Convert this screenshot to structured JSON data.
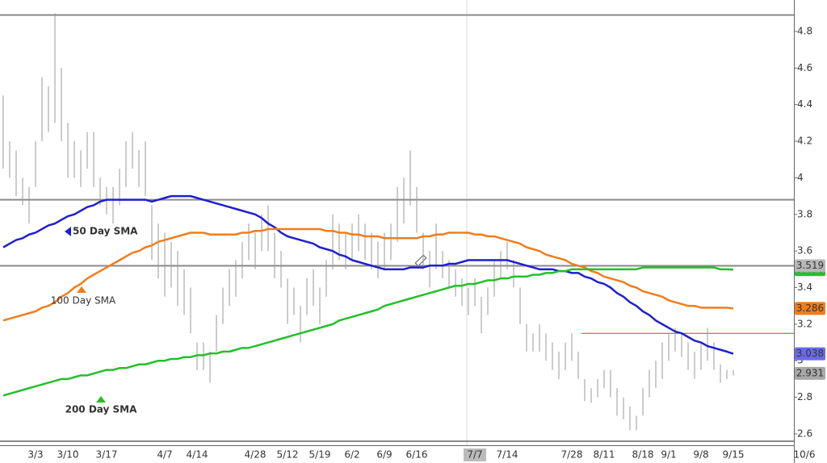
{
  "chart_data": {
    "type": "ohlc",
    "categories": [
      null,
      null,
      null,
      null,
      null,
      "3/3",
      null,
      null,
      null,
      null,
      "3/10",
      null,
      null,
      null,
      null,
      null,
      "3/17",
      null,
      null,
      null,
      null,
      null,
      null,
      null,
      null,
      "4/7",
      null,
      null,
      null,
      null,
      "4/14",
      null,
      null,
      null,
      null,
      null,
      null,
      null,
      null,
      "4/28",
      null,
      null,
      null,
      null,
      "5/12",
      null,
      null,
      null,
      null,
      "5/19",
      null,
      null,
      null,
      null,
      "6/2",
      null,
      null,
      null,
      null,
      "6/9",
      null,
      null,
      null,
      null,
      "6/16",
      null,
      null,
      null,
      null,
      null,
      null,
      null,
      null,
      "7/7",
      null,
      null,
      null,
      null,
      "7/14",
      null,
      null,
      null,
      null,
      null,
      null,
      null,
      null,
      null,
      "7/28",
      null,
      null,
      null,
      null,
      "8/11",
      null,
      null,
      null,
      null,
      null,
      "8/18",
      null,
      null,
      null,
      "9/1",
      null,
      null,
      null,
      null,
      "9/8",
      null,
      null,
      null,
      null,
      "9/15",
      null,
      null,
      null,
      null,
      null,
      null,
      null,
      null,
      null,
      null,
      "10/6"
    ],
    "high": [
      4.45,
      4.2,
      4.15,
      4.0,
      3.95,
      4.2,
      4.55,
      4.5,
      4.9,
      4.6,
      4.3,
      4.2,
      4.15,
      4.25,
      4.25,
      4.0,
      3.95,
      3.95,
      4.05,
      4.2,
      4.25,
      4.15,
      4.2,
      3.85,
      3.75,
      3.7,
      3.65,
      3.6,
      3.5,
      3.4,
      3.1,
      3.1,
      3.05,
      3.25,
      3.4,
      3.5,
      3.55,
      3.65,
      3.75,
      3.7,
      3.8,
      3.85,
      3.7,
      3.6,
      3.45,
      3.4,
      3.3,
      3.45,
      3.5,
      3.4,
      3.55,
      3.8,
      3.75,
      3.7,
      3.75,
      3.8,
      3.75,
      3.7,
      3.65,
      3.7,
      3.75,
      3.95,
      4.0,
      4.15,
      3.95,
      3.7,
      3.6,
      3.75,
      3.6,
      3.55,
      3.5,
      3.45,
      3.4,
      3.45,
      3.35,
      3.4,
      3.55,
      3.6,
      3.65,
      3.55,
      3.4,
      3.2,
      3.15,
      3.2,
      3.15,
      3.1,
      3.05,
      3.1,
      3.15,
      3.05,
      2.9,
      2.85,
      2.9,
      2.95,
      2.95,
      2.85,
      2.8,
      2.75,
      2.7,
      2.85,
      2.95,
      3.0,
      3.1,
      3.15,
      3.18,
      3.15,
      3.1,
      3.05,
      3.1,
      3.18,
      3.1,
      2.98,
      2.95,
      2.95,
      null,
      null,
      null,
      null,
      null,
      null,
      null,
      null,
      null,
      null,
      null
    ],
    "low": [
      4.05,
      4.0,
      3.9,
      3.85,
      3.75,
      3.95,
      4.2,
      4.25,
      4.3,
      4.2,
      4.0,
      4.0,
      3.95,
      4.05,
      3.95,
      3.85,
      3.8,
      3.75,
      3.85,
      3.95,
      4.05,
      3.95,
      3.9,
      3.55,
      3.45,
      3.35,
      3.4,
      3.3,
      3.25,
      3.15,
      2.95,
      2.95,
      2.88,
      3.05,
      3.2,
      3.3,
      3.35,
      3.45,
      3.55,
      3.5,
      3.6,
      3.6,
      3.45,
      3.4,
      3.2,
      3.25,
      3.1,
      3.25,
      3.3,
      3.2,
      3.35,
      3.5,
      3.55,
      3.5,
      3.55,
      3.6,
      3.55,
      3.5,
      3.45,
      3.5,
      3.55,
      3.65,
      3.75,
      3.85,
      3.7,
      3.5,
      3.4,
      3.5,
      3.45,
      3.4,
      3.35,
      3.3,
      3.25,
      3.3,
      3.15,
      3.25,
      3.35,
      3.45,
      3.5,
      3.4,
      3.2,
      3.05,
      3.05,
      3.05,
      3.0,
      2.95,
      2.9,
      2.95,
      3.0,
      2.9,
      2.78,
      2.77,
      2.8,
      2.85,
      2.8,
      2.7,
      2.68,
      2.62,
      2.62,
      2.7,
      2.8,
      2.85,
      2.9,
      3.0,
      3.05,
      3.02,
      2.95,
      2.9,
      2.95,
      3.0,
      2.95,
      2.88,
      2.9,
      2.92,
      null,
      null,
      null,
      null,
      null,
      null,
      null,
      null,
      null,
      null,
      null
    ],
    "bar_color": "#9a9a9a",
    "series": [
      {
        "name": "50 Day SMA",
        "color": "#1f1fcf",
        "values": [
          3.62,
          3.64,
          3.66,
          3.67,
          3.69,
          3.7,
          3.72,
          3.74,
          3.75,
          3.77,
          3.79,
          3.8,
          3.82,
          3.84,
          3.85,
          3.87,
          3.88,
          3.88,
          3.88,
          3.88,
          3.88,
          3.88,
          3.88,
          3.87,
          3.88,
          3.89,
          3.9,
          3.9,
          3.9,
          3.9,
          3.89,
          3.88,
          3.87,
          3.86,
          3.85,
          3.84,
          3.83,
          3.82,
          3.81,
          3.8,
          3.78,
          3.75,
          3.73,
          3.7,
          3.68,
          3.67,
          3.66,
          3.65,
          3.64,
          3.62,
          3.61,
          3.6,
          3.58,
          3.57,
          3.55,
          3.54,
          3.53,
          3.52,
          3.51,
          3.5,
          3.5,
          3.5,
          3.5,
          3.51,
          3.51,
          3.51,
          3.52,
          3.52,
          3.52,
          3.53,
          3.53,
          3.54,
          3.55,
          3.55,
          3.55,
          3.55,
          3.55,
          3.55,
          3.55,
          3.54,
          3.53,
          3.52,
          3.51,
          3.5,
          3.5,
          3.5,
          3.49,
          3.49,
          3.48,
          3.48,
          3.46,
          3.45,
          3.43,
          3.42,
          3.4,
          3.37,
          3.35,
          3.32,
          3.3,
          3.27,
          3.25,
          3.22,
          3.2,
          3.18,
          3.16,
          3.15,
          3.13,
          3.11,
          3.1,
          3.08,
          3.07,
          3.06,
          3.05,
          3.038,
          null,
          null,
          null,
          null,
          null,
          null,
          null,
          null,
          null,
          null,
          null
        ]
      },
      {
        "name": "100 Day SMA",
        "color": "#f07d1a",
        "values": [
          3.22,
          3.23,
          3.24,
          3.25,
          3.26,
          3.27,
          3.29,
          3.3,
          3.32,
          3.35,
          3.37,
          3.4,
          3.42,
          3.45,
          3.47,
          3.49,
          3.51,
          3.53,
          3.55,
          3.57,
          3.59,
          3.6,
          3.62,
          3.63,
          3.65,
          3.66,
          3.67,
          3.68,
          3.69,
          3.7,
          3.7,
          3.7,
          3.69,
          3.69,
          3.69,
          3.69,
          3.69,
          3.7,
          3.7,
          3.71,
          3.71,
          3.72,
          3.72,
          3.72,
          3.72,
          3.72,
          3.72,
          3.72,
          3.72,
          3.72,
          3.71,
          3.71,
          3.7,
          3.7,
          3.69,
          3.69,
          3.68,
          3.68,
          3.68,
          3.67,
          3.67,
          3.67,
          3.67,
          3.67,
          3.67,
          3.68,
          3.68,
          3.69,
          3.69,
          3.7,
          3.7,
          3.7,
          3.7,
          3.69,
          3.69,
          3.68,
          3.68,
          3.67,
          3.66,
          3.65,
          3.64,
          3.62,
          3.61,
          3.6,
          3.58,
          3.57,
          3.56,
          3.55,
          3.53,
          3.52,
          3.51,
          3.49,
          3.48,
          3.46,
          3.45,
          3.44,
          3.43,
          3.41,
          3.4,
          3.38,
          3.37,
          3.36,
          3.35,
          3.33,
          3.32,
          3.31,
          3.3,
          3.3,
          3.29,
          3.29,
          3.29,
          3.29,
          3.29,
          3.286,
          null,
          null,
          null,
          null,
          null,
          null,
          null,
          null,
          null,
          null,
          null
        ]
      },
      {
        "name": "200 Day SMA",
        "color": "#22c02a",
        "values": [
          2.81,
          2.82,
          2.83,
          2.84,
          2.85,
          2.86,
          2.87,
          2.88,
          2.89,
          2.9,
          2.9,
          2.91,
          2.92,
          2.92,
          2.93,
          2.94,
          2.95,
          2.95,
          2.96,
          2.96,
          2.97,
          2.98,
          2.98,
          2.99,
          3.0,
          3.0,
          3.01,
          3.01,
          3.02,
          3.02,
          3.03,
          3.03,
          3.04,
          3.04,
          3.05,
          3.05,
          3.06,
          3.07,
          3.07,
          3.08,
          3.09,
          3.1,
          3.11,
          3.12,
          3.13,
          3.14,
          3.15,
          3.16,
          3.17,
          3.18,
          3.19,
          3.2,
          3.22,
          3.23,
          3.24,
          3.25,
          3.26,
          3.27,
          3.28,
          3.3,
          3.31,
          3.32,
          3.33,
          3.34,
          3.35,
          3.36,
          3.37,
          3.38,
          3.39,
          3.4,
          3.41,
          3.41,
          3.42,
          3.42,
          3.43,
          3.44,
          3.44,
          3.45,
          3.45,
          3.46,
          3.46,
          3.46,
          3.47,
          3.47,
          3.48,
          3.48,
          3.49,
          3.49,
          3.5,
          3.5,
          3.5,
          3.5,
          3.5,
          3.5,
          3.5,
          3.5,
          3.5,
          3.5,
          3.5,
          3.51,
          3.51,
          3.51,
          3.51,
          3.51,
          3.51,
          3.51,
          3.51,
          3.51,
          3.51,
          3.51,
          3.51,
          3.5,
          3.5,
          3.498,
          null,
          null,
          null,
          null,
          null,
          null,
          null,
          null,
          null,
          null,
          null
        ]
      }
    ],
    "levels": [
      {
        "value": 4.89,
        "color": "#8a8a8a"
      },
      {
        "value": 3.88,
        "color": "#8a8a8a"
      },
      {
        "value": 3.519,
        "color": "#8a8a8a"
      },
      {
        "value": 2.56,
        "color": "#8a8a8a"
      }
    ],
    "resistance": {
      "value": 3.15,
      "color": "#e0303a"
    },
    "price_tags": [
      {
        "value": 3.498,
        "color": "#22c02a",
        "text_color": "#ffffff"
      },
      {
        "value": 3.519,
        "color": "#b8b8b8",
        "text_color": "#222222"
      },
      {
        "value": 3.286,
        "color": "#f07d1a",
        "text_color": "#ffffff"
      },
      {
        "value": 3.038,
        "color": "#6a6ae8",
        "text_color": "#ffffff"
      },
      {
        "value": 2.931,
        "color": "#a8a8a8",
        "text_color": "#ffffff"
      }
    ],
    "ylim": [
      2.538,
      4.972
    ],
    "yticks": [
      2.6,
      2.8,
      3,
      3.2,
      3.4,
      3.6,
      3.8,
      4,
      4.2,
      4.4,
      4.6,
      4.8
    ]
  }
}
